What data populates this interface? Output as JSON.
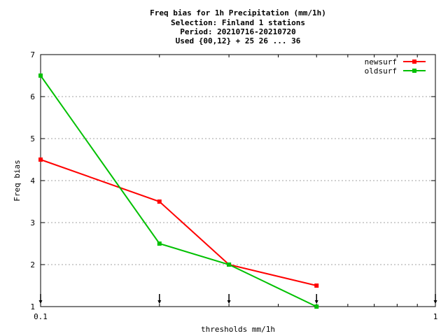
{
  "chart_data": {
    "type": "line",
    "title_lines": [
      "Freq bias  for 1h Precipitation (mm/1h)",
      "Selection: Finland      1 stations",
      "Period: 20210716-20210720",
      "Used {00,12} + 25 26 ... 36"
    ],
    "xlabel": "thresholds mm/1h",
    "ylabel": "Freq bias",
    "x_scale": "log",
    "xlim": [
      0.1,
      1
    ],
    "ylim": [
      1,
      7
    ],
    "x_ticks": [
      0.1,
      1
    ],
    "x_tick_labels": [
      "0.1",
      "1"
    ],
    "y_ticks": [
      1,
      2,
      3,
      4,
      5,
      6,
      7
    ],
    "y_tick_labels": [
      "1",
      "2",
      "3",
      "4",
      "5",
      "6",
      "7"
    ],
    "grid": true,
    "legend_position": "top-right",
    "threshold_markers": [
      0.1,
      0.2,
      0.3,
      0.5,
      1
    ],
    "series": [
      {
        "name": "newsurf",
        "color": "#ff0000",
        "x": [
          0.1,
          0.2,
          0.3,
          0.5
        ],
        "y": [
          4.5,
          3.5,
          2.0,
          1.5
        ]
      },
      {
        "name": "oldsurf",
        "color": "#00c000",
        "x": [
          0.1,
          0.2,
          0.3,
          0.5
        ],
        "y": [
          6.5,
          2.5,
          2.0,
          1.0
        ]
      }
    ]
  }
}
